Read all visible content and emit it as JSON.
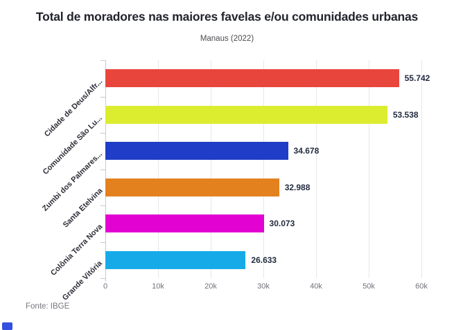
{
  "header": {
    "title": "Total de moradores nas maiores favelas e/ou comunidades urbanas",
    "subtitle": "Manaus (2022)"
  },
  "footer": {
    "source": "Fonte: IBGE",
    "logo_icon": "infogram-logo"
  },
  "chart_data": {
    "type": "bar",
    "orientation": "horizontal",
    "title": "Total de moradores nas maiores favelas e/ou comunidades urbanas",
    "subtitle": "Manaus (2022)",
    "categories": [
      "Cidade de Deus/Alfr...",
      "Comunidade São Lu...",
      "Zumbi dos Palmares...",
      "Santa Etelvina",
      "Colônia Terra Nova",
      "Grande Vitória"
    ],
    "values": [
      55742,
      53538,
      34678,
      32988,
      30073,
      26633
    ],
    "value_labels": [
      "55.742",
      "53.538",
      "34.678",
      "32.988",
      "30.073",
      "26.633"
    ],
    "bar_colors": [
      "#e8463d",
      "#dcec2f",
      "#1f3dc6",
      "#e2811e",
      "#e203d2",
      "#16abe8"
    ],
    "x_tick_labels": [
      "0",
      "10k",
      "20k",
      "30k",
      "40k",
      "50k",
      "60k"
    ],
    "x_tick_values": [
      0,
      10000,
      20000,
      30000,
      40000,
      50000,
      60000
    ],
    "xlim": [
      0,
      60000
    ],
    "grid": "vertical",
    "legend": "none",
    "source": "Fonte: IBGE"
  },
  "colors": {
    "background": "#ffffff",
    "title": "#22242d",
    "subtitle": "#4c4c52",
    "value_label": "#232b3f",
    "category_label": "#2d2e38",
    "tick_label": "#71717b",
    "grid": "#e7e7ec",
    "axis": "#c6c9d3",
    "source": "#75757e",
    "logo_blue": "#3450e0"
  }
}
